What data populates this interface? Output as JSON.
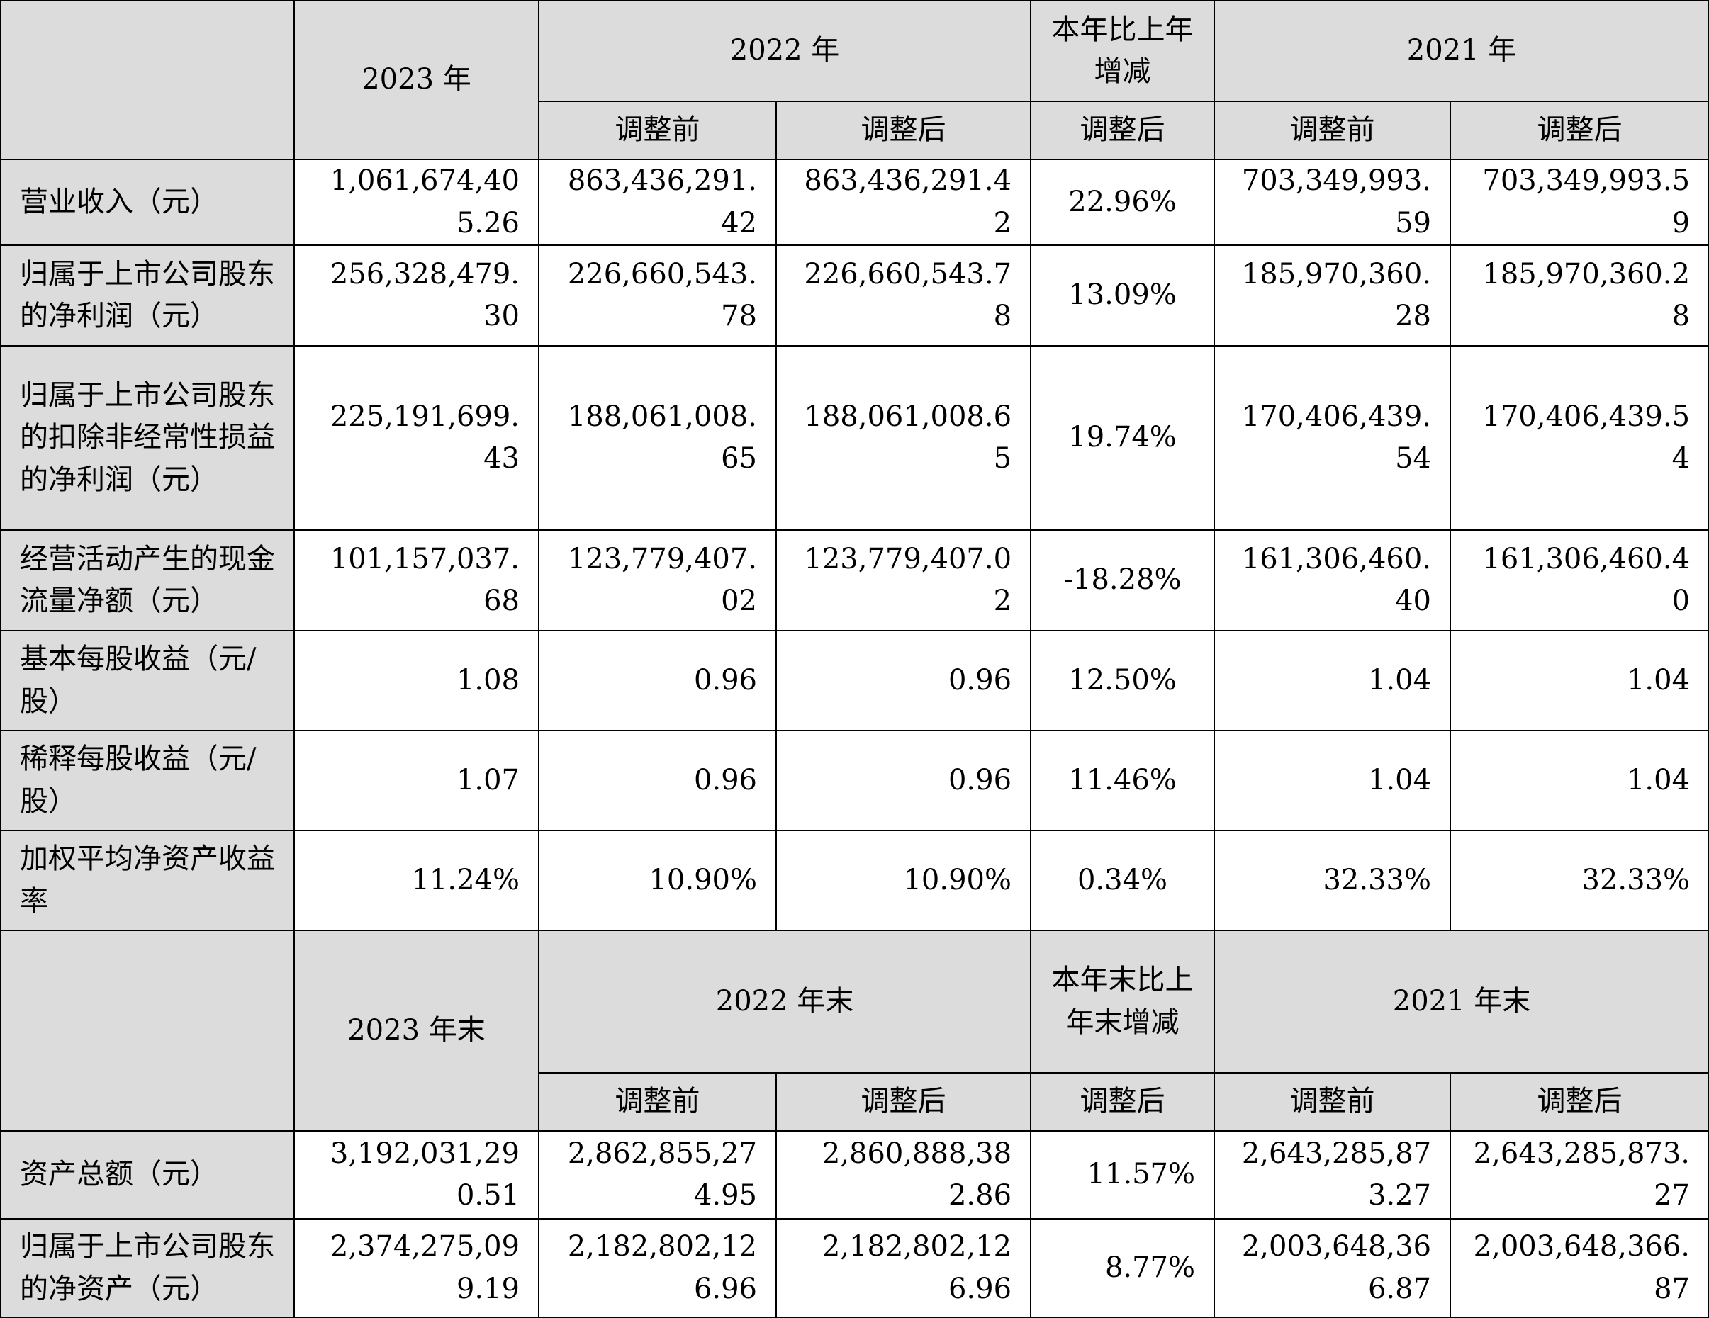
{
  "section1": {
    "header": {
      "y2023": "2023 年",
      "y2022": "2022 年",
      "change": "本年比上年增减",
      "y2021": "2021 年",
      "before": "调整前",
      "after": "调整后"
    },
    "rows": [
      {
        "label": "营业收入（元）",
        "y2023": "1,061,674,405.26",
        "y2022_before": "863,436,291.42",
        "y2022_after": "863,436,291.42",
        "change": "22.96%",
        "y2021_before": "703,349,993.59",
        "y2021_after": "703,349,993.59"
      },
      {
        "label": "归属于上市公司股东的净利润（元）",
        "y2023": "256,328,479.30",
        "y2022_before": "226,660,543.78",
        "y2022_after": "226,660,543.78",
        "change": "13.09%",
        "y2021_before": "185,970,360.28",
        "y2021_after": "185,970,360.28"
      },
      {
        "label": "归属于上市公司股东的扣除非经常性损益的净利润（元）",
        "y2023": "225,191,699.43",
        "y2022_before": "188,061,008.65",
        "y2022_after": "188,061,008.65",
        "change": "19.74%",
        "y2021_before": "170,406,439.54",
        "y2021_after": "170,406,439.54"
      },
      {
        "label": "经营活动产生的现金流量净额（元）",
        "y2023": "101,157,037.68",
        "y2022_before": "123,779,407.02",
        "y2022_after": "123,779,407.02",
        "change": "-18.28%",
        "y2021_before": "161,306,460.40",
        "y2021_after": "161,306,460.40"
      },
      {
        "label": "基本每股收益（元/股）",
        "y2023": "1.08",
        "y2022_before": "0.96",
        "y2022_after": "0.96",
        "change": "12.50%",
        "y2021_before": "1.04",
        "y2021_after": "1.04"
      },
      {
        "label": "稀释每股收益（元/股）",
        "y2023": "1.07",
        "y2022_before": "0.96",
        "y2022_after": "0.96",
        "change": "11.46%",
        "y2021_before": "1.04",
        "y2021_after": "1.04"
      },
      {
        "label": "加权平均净资产收益率",
        "y2023": "11.24%",
        "y2022_before": "10.90%",
        "y2022_after": "10.90%",
        "change": "0.34%",
        "y2021_before": "32.33%",
        "y2021_after": "32.33%"
      }
    ]
  },
  "section2": {
    "header": {
      "y2023": "2023 年末",
      "y2022": "2022 年末",
      "change": "本年末比上年末增减",
      "y2021": "2021 年末",
      "before": "调整前",
      "after": "调整后"
    },
    "rows": [
      {
        "label": "资产总额（元）",
        "y2023": "3,192,031,290.51",
        "y2022_before": "2,862,855,274.95",
        "y2022_after": "2,860,888,382.86",
        "change": "11.57%",
        "y2021_before": "2,643,285,873.27",
        "y2021_after": "2,643,285,873.27"
      },
      {
        "label": "归属于上市公司股东的净资产（元）",
        "y2023": "2,374,275,099.19",
        "y2022_before": "2,182,802,126.96",
        "y2022_after": "2,182,802,126.96",
        "change": "8.77%",
        "y2021_before": "2,003,648,366.87",
        "y2021_after": "2,003,648,366.87"
      }
    ]
  }
}
